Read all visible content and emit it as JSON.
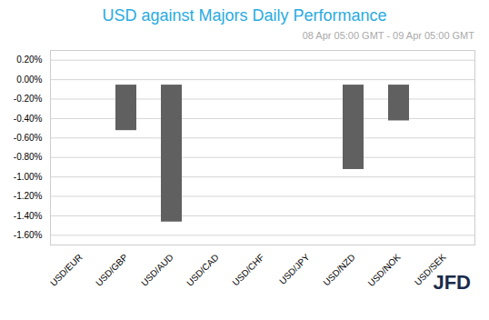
{
  "chart_data": {
    "type": "bar",
    "title": "USD against Majors Daily Performance",
    "subtitle": "08 Apr 05:00 GMT - 09 Apr  05:00 GMT",
    "categories": [
      "USD/EUR",
      "USD/GBP",
      "USD/AUD",
      "USD/CAD",
      "USD/CHF",
      "USD/JPY",
      "USD/NZD",
      "USD/NOK",
      "USD/SEK"
    ],
    "values": [
      0.0008,
      -0.0058,
      -0.0152,
      -0.0006,
      0.0006,
      0.0007,
      -0.0098,
      -0.0048,
      -0.0005
    ],
    "colors": [
      "#29abe2",
      "#606060",
      "#606060",
      "#606060",
      "#29abe2",
      "#29abe2",
      "#606060",
      "#606060",
      "#606060"
    ],
    "ylim": [
      -0.017,
      0.003
    ],
    "yticks": [
      {
        "value": -0.016,
        "label": "-1.60%"
      },
      {
        "value": -0.014,
        "label": "-1.40%"
      },
      {
        "value": -0.012,
        "label": "-1.20%"
      },
      {
        "value": -0.01,
        "label": "-1.00%"
      },
      {
        "value": -0.008,
        "label": "-0.80%"
      },
      {
        "value": -0.006,
        "label": "-0.60%"
      },
      {
        "value": -0.004,
        "label": "-0.40%"
      },
      {
        "value": -0.002,
        "label": "-0.20%"
      },
      {
        "value": 0,
        "label": "0.00%"
      },
      {
        "value": 0.002,
        "label": "0.20%"
      }
    ],
    "grid": true,
    "annotations": [
      "JFD"
    ]
  }
}
